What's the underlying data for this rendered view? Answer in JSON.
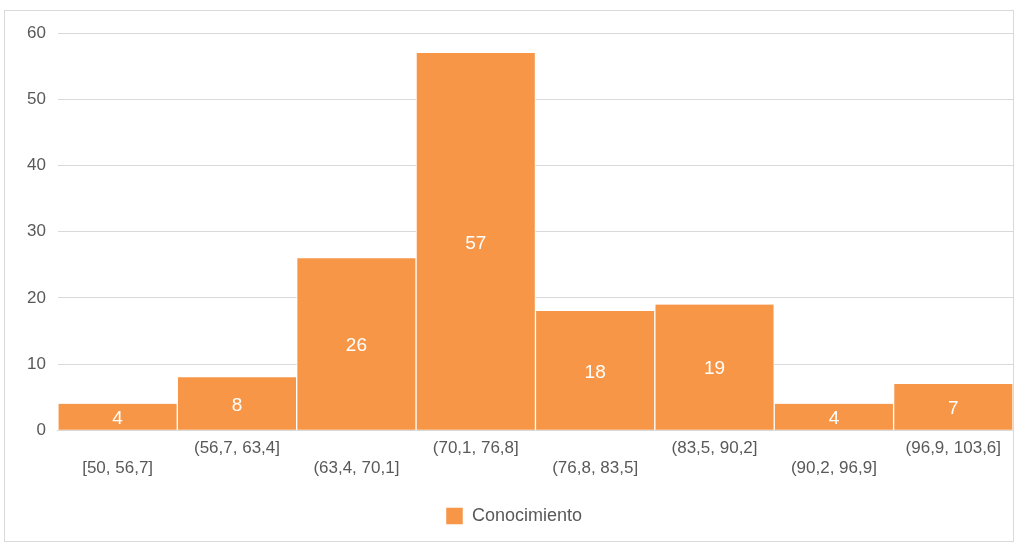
{
  "chart_data": {
    "type": "bar",
    "categories": [
      "[50, 56,7]",
      "(56,7, 63,4]",
      "(63,4, 70,1]",
      "(70,1, 76,8]",
      "(76,8, 83,5]",
      "(83,5, 90,2]",
      "(90,2, 96,9]",
      "(96,9, 103,6]"
    ],
    "series": [
      {
        "name": "Conocimiento",
        "color": "#f79646",
        "values": [
          4,
          8,
          26,
          57,
          18,
          19,
          4,
          7
        ]
      }
    ],
    "ylim": [
      0,
      60
    ],
    "yticks": [
      0,
      10,
      20,
      30,
      40,
      50,
      60
    ],
    "grid": "y",
    "legend": "bottom",
    "data_labels": true
  }
}
